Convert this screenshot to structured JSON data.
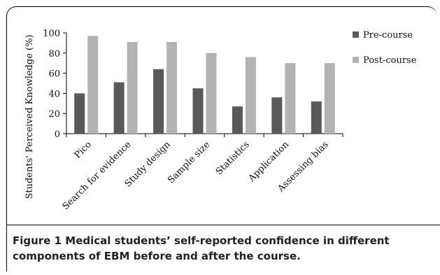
{
  "caption": {
    "label": "Figure 1",
    "text": " Medical students’ self-reported confidence in different components of EBM before and after the course."
  },
  "chart_data": {
    "type": "bar",
    "categories": [
      "Pico",
      "Search for evidence",
      "Study design",
      "Sample size",
      "Statistics",
      "Application",
      "Assessing bias"
    ],
    "series": [
      {
        "name": "Pre-course",
        "values": [
          40,
          51,
          64,
          45,
          27,
          36,
          32
        ],
        "color": "#595959"
      },
      {
        "name": "Post-course",
        "values": [
          97,
          91,
          91,
          80,
          76,
          70,
          70
        ],
        "color": "#b3b3b3"
      }
    ],
    "ylabel": "Students' Perceived Knowledge (%)",
    "ylim": [
      0,
      100
    ],
    "yticks": [
      0,
      20,
      40,
      60,
      80,
      100
    ],
    "grid": false,
    "legend_position": "right"
  }
}
